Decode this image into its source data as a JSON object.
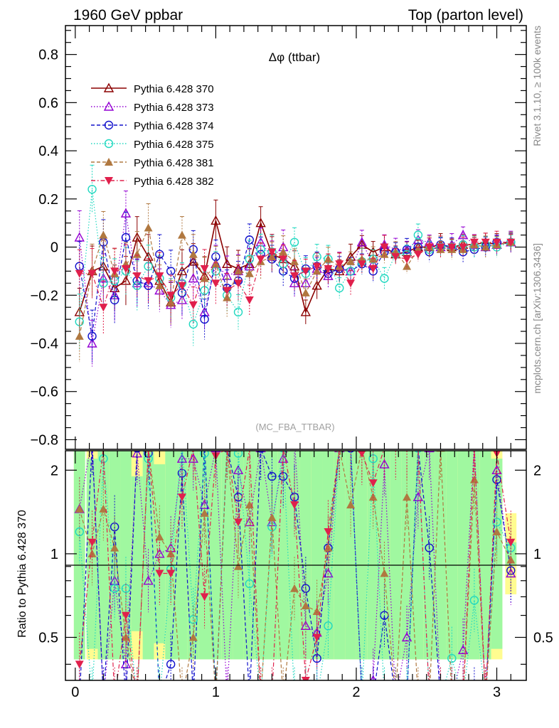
{
  "header": {
    "left": "1960 GeV ppbar",
    "right": "Top (parton level)"
  },
  "side_labels": {
    "rivet": "Rivet 3.1.10, ≥ 100k events",
    "mcplots": "mcplots.cern.ch [arXiv:1306.3436]"
  },
  "colors": {
    "s370": "#8b0000",
    "s373": "#9400d3",
    "s374": "#1010cc",
    "s375": "#20d8c0",
    "s381": "#b07840",
    "s382": "#e0204c",
    "band_inner": "#a0f8a0",
    "band_outer": "#fffc90"
  },
  "chart_data": [
    {
      "type": "line",
      "title": "Δφ (ttbar)",
      "watermark": "(MC_FBA_TTBAR)",
      "xlim": [
        -0.07,
        3.21
      ],
      "ylim": [
        -0.84,
        0.92
      ],
      "y_ticks": [
        -0.8,
        -0.6,
        -0.4,
        -0.2,
        0,
        0.2,
        0.4,
        0.6,
        0.8
      ],
      "y_tick_labels": [
        "−0.8",
        "−0.6",
        "−0.4",
        "−0.2",
        "0",
        "0.2",
        "0.4",
        "0.6",
        "0.8"
      ],
      "legend_position": "top-left",
      "x": [
        0.03,
        0.12,
        0.2,
        0.28,
        0.36,
        0.44,
        0.52,
        0.6,
        0.68,
        0.76,
        0.84,
        0.92,
        1.0,
        1.08,
        1.16,
        1.24,
        1.32,
        1.4,
        1.48,
        1.56,
        1.64,
        1.72,
        1.8,
        1.88,
        1.96,
        2.04,
        2.12,
        2.2,
        2.28,
        2.36,
        2.44,
        2.52,
        2.6,
        2.68,
        2.76,
        2.84,
        2.92,
        3.0,
        3.1
      ],
      "series": [
        {
          "name": "Pythia 6.428 370",
          "key": "s370",
          "marker": "triangle-open",
          "dash": "solid",
          "values": [
            -0.27,
            -0.1,
            -0.08,
            -0.17,
            -0.14,
            0.04,
            -0.04,
            -0.14,
            -0.23,
            -0.1,
            -0.06,
            -0.12,
            0.11,
            -0.07,
            -0.09,
            -0.07,
            0.1,
            -0.03,
            -0.05,
            -0.08,
            -0.27,
            -0.16,
            -0.09,
            -0.1,
            -0.04,
            0.01,
            -0.02,
            0.0,
            -0.03,
            -0.02,
            0.0,
            0.0,
            0.01,
            0.0,
            0.01,
            0.01,
            0.02,
            0.01,
            0.02
          ]
        },
        {
          "name": "Pythia 6.428 373",
          "key": "s373",
          "marker": "triangle-open",
          "dash": "dotted",
          "values": [
            0.04,
            -0.4,
            -0.13,
            -0.2,
            0.14,
            -0.15,
            -0.15,
            -0.18,
            -0.24,
            -0.22,
            -0.13,
            -0.27,
            -0.07,
            -0.12,
            -0.1,
            -0.08,
            0.02,
            -0.04,
            0.0,
            -0.15,
            -0.15,
            -0.09,
            -0.12,
            -0.08,
            -0.1,
            0.02,
            -0.07,
            0.01,
            -0.01,
            -0.01,
            0.03,
            0.02,
            0.0,
            0.01,
            0.05,
            0.01,
            0.0,
            0.01,
            0.02
          ]
        },
        {
          "name": "Pythia 6.428 374",
          "key": "s374",
          "marker": "circle-open",
          "dash": "dashed",
          "values": [
            -0.08,
            -0.37,
            0.02,
            -0.22,
            0.04,
            -0.14,
            -0.16,
            -0.03,
            -0.1,
            -0.19,
            -0.01,
            -0.3,
            -0.04,
            -0.17,
            -0.14,
            0.03,
            -0.03,
            -0.05,
            -0.1,
            -0.13,
            -0.09,
            -0.08,
            -0.11,
            -0.09,
            -0.1,
            -0.07,
            -0.1,
            -0.02,
            -0.02,
            -0.01,
            0.0,
            -0.02,
            0.01,
            0.0,
            -0.02,
            -0.01,
            0.0,
            0.02,
            0.02
          ]
        },
        {
          "name": "Pythia 6.428 375",
          "key": "s375",
          "marker": "circle-open",
          "dash": "dotted",
          "values": [
            -0.31,
            0.24,
            -0.15,
            -0.14,
            -0.1,
            -0.16,
            -0.08,
            -0.13,
            -0.21,
            -0.15,
            -0.32,
            -0.18,
            -0.1,
            -0.2,
            -0.27,
            -0.05,
            -0.01,
            -0.02,
            -0.07,
            0.02,
            -0.11,
            -0.04,
            -0.05,
            -0.17,
            -0.1,
            -0.06,
            -0.05,
            -0.13,
            -0.03,
            -0.03,
            0.05,
            -0.01,
            0.0,
            0.0,
            0.01,
            0.0,
            0.01,
            0.0,
            0.02
          ]
        },
        {
          "name": "Pythia 6.428 381",
          "key": "s381",
          "marker": "triangle-filled",
          "dash": "dashed",
          "values": [
            -0.37,
            -0.1,
            0.05,
            -0.11,
            -0.07,
            -0.03,
            0.08,
            -0.16,
            -0.23,
            0.05,
            -0.03,
            -0.13,
            -0.07,
            -0.21,
            -0.1,
            -0.11,
            -0.06,
            -0.04,
            -0.02,
            -0.06,
            -0.19,
            -0.1,
            -0.05,
            -0.08,
            -0.06,
            -0.05,
            -0.05,
            -0.03,
            -0.02,
            -0.08,
            -0.01,
            0.0,
            -0.01,
            -0.01,
            -0.01,
            0.01,
            0.0,
            0.01,
            0.02
          ]
        },
        {
          "name": "Pythia 6.428 382",
          "key": "s382",
          "marker": "triangle-down-filled",
          "dash": "dashdot",
          "values": [
            -0.11,
            -0.11,
            -0.25,
            -0.1,
            -0.09,
            -0.12,
            -0.14,
            -0.12,
            -0.2,
            -0.16,
            -0.24,
            -0.09,
            -0.15,
            -0.18,
            -0.15,
            -0.22,
            -0.05,
            -0.02,
            -0.05,
            -0.12,
            -0.1,
            -0.08,
            -0.09,
            -0.07,
            -0.15,
            -0.07,
            -0.09,
            0.0,
            -0.04,
            -0.05,
            -0.03,
            0.0,
            0.0,
            0.0,
            0.0,
            0.02,
            0.02,
            0.02,
            0.02
          ]
        }
      ]
    },
    {
      "type": "line",
      "ylabel": "Ratio to Pythia 6.428 370",
      "reference": "Pythia 6.428 370",
      "xlim": [
        -0.07,
        3.21
      ],
      "ylim": [
        0.35,
        2.35
      ],
      "x_ticks": [
        0,
        1,
        2,
        3
      ],
      "x_tick_labels": [
        "0",
        "1",
        "2",
        "3"
      ],
      "y_ticks": [
        0.5,
        1,
        2
      ],
      "y_tick_labels": [
        "0.5",
        "1",
        "2"
      ],
      "band_inner": [
        2.4,
        2.2,
        2.4,
        2.4,
        2.4,
        1.9,
        2.4,
        2.1,
        2.4,
        2.4,
        2.4,
        2.4,
        2.4,
        2.4,
        2.4,
        2.4,
        2.4,
        2.4,
        2.4,
        2.4,
        2.4,
        2.4,
        2.4,
        2.4,
        2.4,
        2.4,
        2.4,
        2.4,
        2.4,
        2.4,
        2.4,
        2.4,
        2.4,
        2.4,
        2.4,
        2.4,
        2.4,
        2.2,
        1.1
      ],
      "band_outer": [
        2.4,
        2.4,
        2.4,
        2.4,
        2.4,
        2.4,
        2.4,
        2.4,
        2.4,
        2.4,
        2.4,
        2.4,
        2.4,
        2.4,
        2.4,
        2.4,
        2.4,
        2.4,
        2.4,
        2.4,
        2.4,
        2.4,
        2.4,
        2.4,
        2.4,
        2.4,
        2.4,
        2.4,
        2.4,
        2.4,
        2.4,
        2.4,
        2.4,
        2.4,
        2.4,
        2.4,
        2.4,
        2.4,
        1.4
      ],
      "series": [
        {
          "name": "Pythia 6.428 373",
          "key": "s373",
          "values": [
            1.45,
            2.6,
            0.3,
            0.8,
            0.4,
            2.3,
            0.8,
            1.0,
            1.05,
            2.2,
            2.2,
            1.5,
            2.4,
            0.3,
            2.0,
            1.3,
            2.4,
            1.3,
            2.2,
            2.6,
            0.55,
            0.52,
            0.85,
            2.4,
            2.5,
            0.3,
            0.35,
            2.1,
            0.3,
            0.5,
            1.6,
            2.4,
            0.3,
            0.3,
            0.45,
            2.5,
            0.3,
            2.0,
            0.85
          ]
        },
        {
          "name": "Pythia 6.428 374",
          "key": "s374",
          "values": [
            0.3,
            2.5,
            0.3,
            1.25,
            0.3,
            2.4,
            2.3,
            0.3,
            0.4,
            1.95,
            0.3,
            2.5,
            0.3,
            2.4,
            1.6,
            0.3,
            2.4,
            1.9,
            1.9,
            1.6,
            0.75,
            0.42,
            1.05,
            2.4,
            2.4,
            0.3,
            0.3,
            0.6,
            0.3,
            0.3,
            2.4,
            1.05,
            0.3,
            0.3,
            0.3,
            0.3,
            0.3,
            1.85,
            0.87
          ]
        },
        {
          "name": "Pythia 6.428 375",
          "key": "s375",
          "values": [
            1.2,
            0.3,
            2.2,
            0.75,
            0.75,
            0.3,
            2.2,
            0.3,
            0.88,
            2.5,
            0.58,
            2.3,
            0.3,
            2.5,
            2.3,
            0.78,
            0.3,
            1.25,
            2.4,
            0.3,
            0.3,
            0.3,
            0.55,
            2.4,
            2.5,
            0.3,
            2.2,
            0.3,
            0.3,
            0.3,
            2.4,
            0.3,
            0.3,
            0.42,
            0.3,
            0.68,
            0.3,
            1.3,
            1.05
          ]
        },
        {
          "name": "Pythia 6.428 381",
          "key": "s381",
          "values": [
            1.45,
            1.0,
            1.45,
            1.05,
            0.5,
            0.3,
            2.4,
            1.15,
            1.0,
            0.3,
            0.5,
            1.4,
            0.3,
            2.4,
            0.9,
            1.5,
            0.3,
            1.35,
            0.3,
            0.75,
            0.65,
            0.62,
            1.05,
            2.4,
            1.5,
            2.4,
            1.6,
            0.85,
            0.3,
            1.6,
            0.3,
            0.3,
            2.4,
            0.3,
            0.3,
            1.85,
            0.3,
            1.2,
            0.95
          ]
        },
        {
          "name": "Pythia 6.428 382",
          "key": "s382",
          "values": [
            0.4,
            1.1,
            2.4,
            0.3,
            0.6,
            0.3,
            2.4,
            0.85,
            0.85,
            1.6,
            2.4,
            0.7,
            2.25,
            2.4,
            1.3,
            2.4,
            0.3,
            0.3,
            2.4,
            1.5,
            0.35,
            0.5,
            1.2,
            2.4,
            2.4,
            2.3,
            1.8,
            2.4,
            2.4,
            2.4,
            2.4,
            0.3,
            0.3,
            0.3,
            0.3,
            2.4,
            0.3,
            2.3,
            1.1
          ]
        }
      ]
    }
  ]
}
